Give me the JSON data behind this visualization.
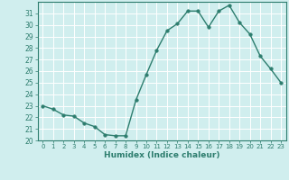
{
  "x": [
    0,
    1,
    2,
    3,
    4,
    5,
    6,
    7,
    8,
    9,
    10,
    11,
    12,
    13,
    14,
    15,
    16,
    17,
    18,
    19,
    20,
    21,
    22,
    23
  ],
  "y": [
    23.0,
    22.7,
    22.2,
    22.1,
    21.5,
    21.2,
    20.5,
    20.4,
    20.4,
    23.5,
    25.7,
    27.8,
    29.5,
    30.1,
    31.2,
    31.2,
    29.8,
    31.2,
    31.7,
    30.2,
    29.2,
    27.3,
    26.2,
    25.0
  ],
  "line_color": "#2d7d6e",
  "marker": "o",
  "marker_size": 2.5,
  "bg_color": "#d0eeee",
  "grid_color": "#ffffff",
  "xlabel": "Humidex (Indice chaleur)",
  "xlim": [
    -0.5,
    23.5
  ],
  "ylim": [
    20,
    32
  ],
  "yticks": [
    20,
    21,
    22,
    23,
    24,
    25,
    26,
    27,
    28,
    29,
    30,
    31
  ],
  "xticks": [
    0,
    1,
    2,
    3,
    4,
    5,
    6,
    7,
    8,
    9,
    10,
    11,
    12,
    13,
    14,
    15,
    16,
    17,
    18,
    19,
    20,
    21,
    22,
    23
  ]
}
